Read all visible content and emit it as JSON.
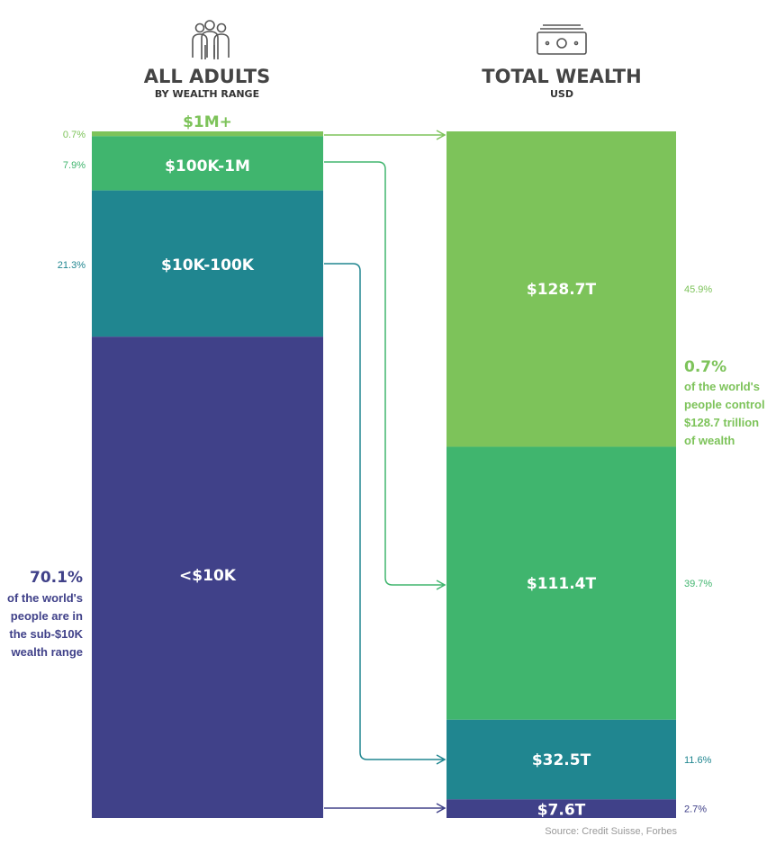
{
  "header_left": {
    "title": "ALL ADULTS",
    "subtitle": "BY WEALTH RANGE",
    "icon": "people-group-icon"
  },
  "header_right": {
    "title": "TOTAL WEALTH",
    "subtitle": "USD",
    "icon": "banknote-stack-icon"
  },
  "chart_data": {
    "type": "bar",
    "stacked": true,
    "title": "ALL ADULTS BY WEALTH RANGE vs TOTAL WEALTH USD",
    "categories": [
      "$1M+",
      "$100K-1M",
      "$10K-100K",
      "<$10K"
    ],
    "series": [
      {
        "name": "ALL ADULTS BY WEALTH RANGE",
        "values": [
          0.7,
          7.9,
          21.3,
          70.1
        ],
        "value_labels": [
          "0.7%",
          "7.9%",
          "21.3%",
          ""
        ],
        "segment_labels": [
          "$1M+",
          "$100K-1M",
          "$10K-100K",
          "<$10K"
        ]
      },
      {
        "name": "TOTAL WEALTH USD",
        "values": [
          128.7,
          111.4,
          32.5,
          7.6
        ],
        "unit": "trillion USD",
        "share_values": [
          45.9,
          39.7,
          11.6,
          2.7
        ],
        "value_labels": [
          "45.9%",
          "39.7%",
          "11.6%",
          "2.7%"
        ],
        "segment_labels": [
          "$128.7T",
          "$111.4T",
          "$32.5T",
          "$7.6T"
        ]
      }
    ],
    "colors": [
      "#7dc35a",
      "#40b56e",
      "#208690",
      "#404189"
    ]
  },
  "annotations": {
    "right": {
      "big": "0.7%",
      "lines": [
        "of the world's",
        "people control",
        "$128.7 trillion",
        "of wealth"
      ]
    },
    "left": {
      "big": "70.1%",
      "lines": [
        "of the world's",
        "people are in",
        "the sub-$10K",
        "wealth range"
      ]
    }
  },
  "source": "Source: Credit Suisse, Forbes"
}
